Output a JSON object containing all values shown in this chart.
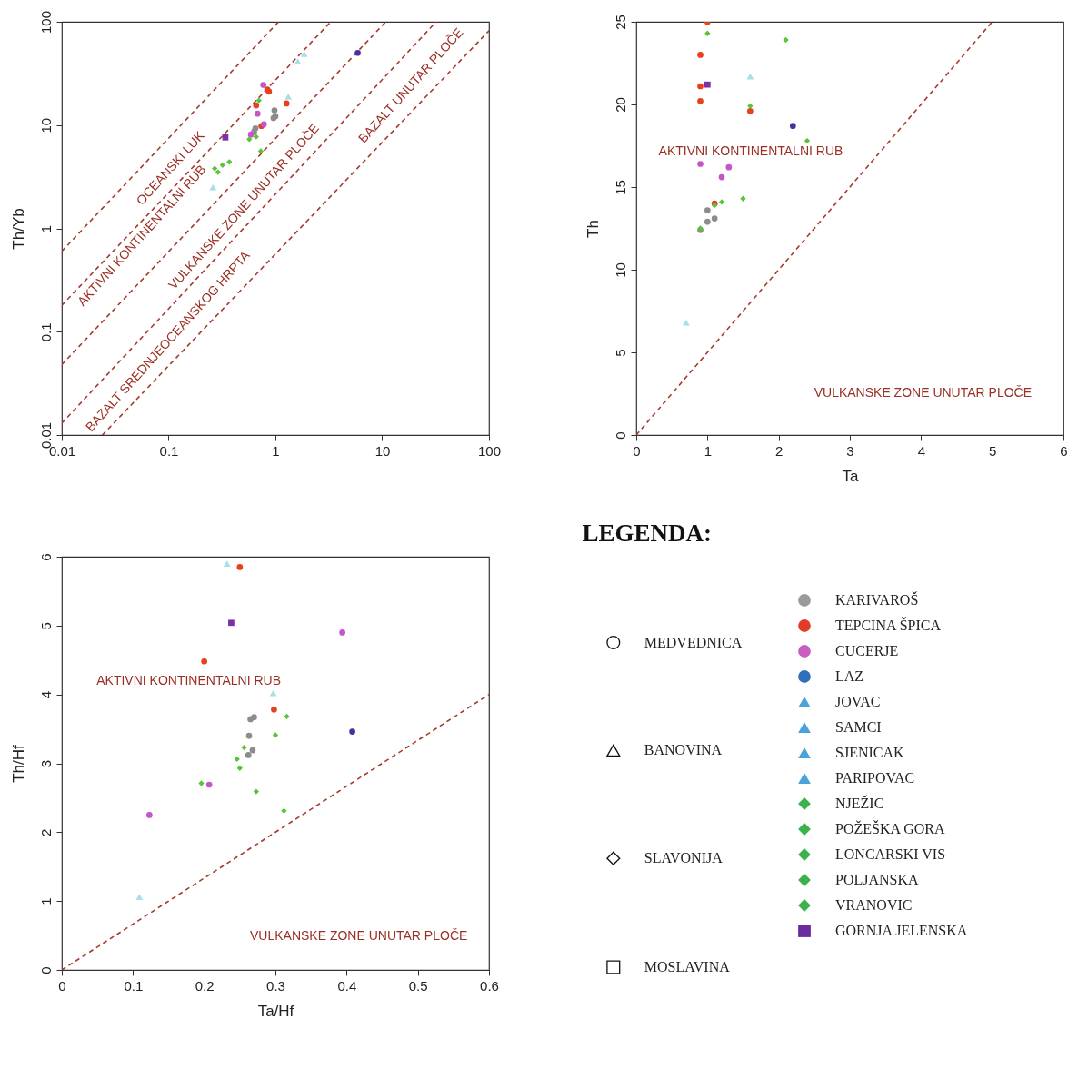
{
  "chart_data": [
    {
      "type": "scatter",
      "ylabel": "Th/Yb",
      "log": "xy",
      "xlim": [
        0.01,
        100
      ],
      "ylim": [
        0.01,
        100
      ],
      "xticks": [
        0.01,
        0.1,
        1,
        10,
        100
      ],
      "yticks": [
        0.01,
        0.1,
        1,
        10,
        100
      ],
      "series": [
        {
          "type": "line",
          "line_style": "dashed",
          "color": "#a63a2e",
          "x": [
            0.01,
            1.07
          ],
          "values": [
            0.6,
            100
          ]
        },
        {
          "type": "line",
          "line_style": "dashed",
          "color": "#a63a2e",
          "x": [
            0.01,
            3.3
          ],
          "values": [
            0.18,
            100
          ]
        },
        {
          "type": "line",
          "line_style": "dashed",
          "color": "#a63a2e",
          "x": [
            0.01,
            10.8
          ],
          "values": [
            0.048,
            100
          ]
        },
        {
          "type": "line",
          "line_style": "dashed",
          "color": "#a63a2e",
          "x": [
            0.01,
            32
          ],
          "values": [
            0.013,
            100
          ]
        },
        {
          "type": "line",
          "line_style": "dashed",
          "color": "#a63a2e",
          "x": [
            0.024,
            100
          ],
          "values": [
            0.01,
            82
          ]
        },
        {
          "marker": "circle",
          "color": "#8c8c8c",
          "x": [
            0.98,
            0.96,
            1.0,
            0.65,
            0.63
          ],
          "values": [
            13.9,
            11.7,
            12.2,
            9.3,
            8.6
          ]
        },
        {
          "marker": "circle",
          "color": "#e8401c",
          "x": [
            0.84,
            0.87,
            0.66,
            1.27,
            0.74
          ],
          "values": [
            22.1,
            21.1,
            15.5,
            16.2,
            9.8
          ]
        },
        {
          "marker": "circle",
          "color": "#c356c9",
          "x": [
            0.77,
            0.68,
            0.78,
            0.59
          ],
          "values": [
            24.5,
            12.9,
            10.2,
            8.1
          ]
        },
        {
          "marker": "circle",
          "color": "#4b2fa0",
          "x": [
            5.9
          ],
          "values": [
            50
          ]
        },
        {
          "marker": "triangle",
          "color": "#a6dfe6",
          "x": [
            1.86,
            1.62,
            1.32,
            0.26
          ],
          "values": [
            48.8,
            41.3,
            18.9,
            2.5
          ]
        },
        {
          "marker": "diamond",
          "color": "#5ac33a",
          "x": [
            0.7,
            0.57,
            0.66,
            0.73,
            0.27,
            0.29,
            0.32,
            0.37
          ],
          "values": [
            17.3,
            7.3,
            7.7,
            5.6,
            3.8,
            3.5,
            4.1,
            4.4
          ]
        },
        {
          "marker": "square",
          "color": "#7b2fa8",
          "x": [
            0.34
          ],
          "values": [
            7.6
          ]
        }
      ],
      "annotations": [
        "OCEANSKI LUK",
        "AKTIVNI KONTINENTALNI RUB",
        "VULKANSKE ZONE UNUTAR PLOČE",
        "BAZALT SREDNJEOCEANSKOG HRPTA",
        "BAZALT UNUTAR PLOČE"
      ]
    },
    {
      "type": "scatter",
      "xlabel": "Ta",
      "ylabel": "Th",
      "xlim": [
        0,
        6
      ],
      "ylim": [
        0,
        25
      ],
      "xticks": [
        0,
        1,
        2,
        3,
        4,
        5,
        6
      ],
      "yticks": [
        0,
        5,
        10,
        15,
        20,
        25
      ],
      "series": [
        {
          "type": "line",
          "line_style": "dashed",
          "color": "#a63a2e",
          "x": [
            0,
            5
          ],
          "values": [
            0,
            25
          ]
        },
        {
          "marker": "circle",
          "color": "#8c8c8c",
          "x": [
            1.0,
            1.0,
            1.1,
            0.9
          ],
          "values": [
            13.6,
            12.9,
            13.1,
            12.4
          ]
        },
        {
          "marker": "circle",
          "color": "#e8401c",
          "x": [
            1.0,
            0.9,
            0.9,
            0.9,
            1.6,
            1.1
          ],
          "values": [
            25.0,
            23.0,
            21.1,
            20.2,
            19.6,
            14.0
          ]
        },
        {
          "marker": "circle",
          "color": "#c356c9",
          "x": [
            0.9,
            1.3,
            1.2
          ],
          "values": [
            16.4,
            16.2,
            15.6
          ]
        },
        {
          "marker": "circle",
          "color": "#4b2fa0",
          "x": [
            2.2
          ],
          "values": [
            18.7
          ]
        },
        {
          "marker": "triangle",
          "color": "#a6dfe6",
          "x": [
            1.6,
            0.7
          ],
          "values": [
            21.7,
            6.8
          ]
        },
        {
          "marker": "diamond",
          "color": "#5ac33a",
          "x": [
            1.0,
            2.1,
            1.6,
            2.4,
            1.5,
            1.1,
            1.2,
            0.9
          ],
          "values": [
            24.3,
            23.9,
            19.9,
            17.8,
            14.3,
            13.9,
            14.1,
            12.5
          ]
        },
        {
          "marker": "square",
          "color": "#7b2fa8",
          "x": [
            1.0
          ],
          "values": [
            21.2
          ]
        }
      ],
      "annotations": [
        "AKTIVNI KONTINENTALNI RUB",
        "VULKANSKE ZONE UNUTAR PLOČE"
      ]
    },
    {
      "type": "scatter",
      "xlabel": "Ta/Hf",
      "ylabel": "Th/Hf",
      "xlim": [
        0,
        0.6
      ],
      "ylim": [
        0,
        6
      ],
      "xticks": [
        0,
        0.1,
        0.2,
        0.3,
        0.4,
        0.5,
        0.6
      ],
      "yticks": [
        0,
        1,
        2,
        3,
        4,
        5,
        6
      ],
      "series": [
        {
          "type": "line",
          "line_style": "dashed",
          "color": "#a63a2e",
          "x": [
            0,
            0.6
          ],
          "values": [
            0,
            4
          ]
        },
        {
          "marker": "circle",
          "color": "#8c8c8c",
          "x": [
            0.265,
            0.27,
            0.263,
            0.268,
            0.262
          ],
          "values": [
            3.64,
            3.67,
            3.4,
            3.19,
            3.12
          ]
        },
        {
          "marker": "circle",
          "color": "#e8401c",
          "x": [
            0.25,
            0.2,
            0.298
          ],
          "values": [
            5.85,
            4.48,
            3.78
          ]
        },
        {
          "marker": "circle",
          "color": "#c356c9",
          "x": [
            0.394,
            0.207,
            0.123
          ],
          "values": [
            4.9,
            2.69,
            2.25
          ]
        },
        {
          "marker": "circle",
          "color": "#4b2fa0",
          "x": [
            0.408
          ],
          "values": [
            3.46
          ]
        },
        {
          "marker": "triangle",
          "color": "#a6dfe6",
          "x": [
            0.232,
            0.297,
            0.109
          ],
          "values": [
            5.9,
            4.02,
            1.06
          ]
        },
        {
          "marker": "diamond",
          "color": "#5ac33a",
          "x": [
            0.316,
            0.3,
            0.256,
            0.246,
            0.25,
            0.196,
            0.273,
            0.312
          ],
          "values": [
            3.68,
            3.41,
            3.23,
            3.06,
            2.93,
            2.71,
            2.59,
            2.31
          ]
        },
        {
          "marker": "square",
          "color": "#7b2fa8",
          "x": [
            0.238
          ],
          "values": [
            5.04
          ]
        }
      ],
      "annotations": [
        "AKTIVNI KONTINENTALNI RUB",
        "VULKANSKE ZONE UNUTAR PLOČE"
      ]
    },
    {
      "type": "other",
      "title": "LEGENDA:",
      "series": [
        {
          "name": "MEDVEDNICA",
          "marker": "circle"
        },
        {
          "name": "BANOVINA",
          "marker": "triangle"
        },
        {
          "name": "SLAVONIJA",
          "marker": "diamond"
        },
        {
          "name": "MOSLAVINA",
          "marker": "square"
        },
        {
          "name": "KARIVAROŠ",
          "marker": "circle",
          "color": "#9a9a9a"
        },
        {
          "name": "TEPCINA ŠPICA",
          "marker": "circle",
          "color": "#e23c26"
        },
        {
          "name": "CUCERJE",
          "marker": "circle",
          "color": "#c75ec0"
        },
        {
          "name": "LAZ",
          "marker": "circle",
          "color": "#2d6fb8"
        },
        {
          "name": "JOVAC",
          "marker": "triangle",
          "color": "#4aa3d8"
        },
        {
          "name": "SAMCI",
          "marker": "triangle",
          "color": "#4aa3d8"
        },
        {
          "name": "SJENICAK",
          "marker": "triangle",
          "color": "#4aa3d8"
        },
        {
          "name": "PARIPOVAC",
          "marker": "triangle",
          "color": "#4aa3d8"
        },
        {
          "name": "NJEŽIC",
          "marker": "diamond",
          "color": "#3bb34a"
        },
        {
          "name": "POŽEŠKA GORA",
          "marker": "diamond",
          "color": "#3bb34a"
        },
        {
          "name": "LONCARSKI VIS",
          "marker": "diamond",
          "color": "#3bb34a"
        },
        {
          "name": "POLJANSKA",
          "marker": "diamond",
          "color": "#3bb34a"
        },
        {
          "name": "VRANOVIC",
          "marker": "diamond",
          "color": "#3bb34a"
        },
        {
          "name": "GORNJA JELENSKA",
          "marker": "square",
          "color": "#6a2c9c"
        }
      ]
    }
  ]
}
